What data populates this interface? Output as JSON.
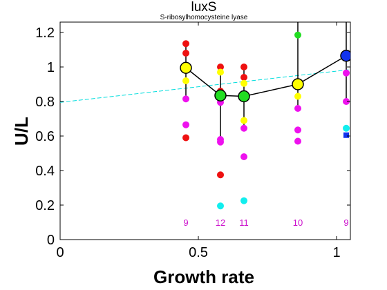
{
  "chart_data": {
    "type": "scatter",
    "title": "luxS",
    "subtitle": "S-ribosylhomocysteine lyase",
    "xlabel": "Growth rate",
    "ylabel": "U/L",
    "xlim": [
      0,
      1.05
    ],
    "ylim": [
      0,
      1.26
    ],
    "xticks": [
      "0",
      "0.5",
      "1"
    ],
    "xtick_values": [
      0,
      0.5,
      1
    ],
    "yticks": [
      "0",
      "0.2",
      "0.4",
      "0.6",
      "0.8",
      "1",
      "1.2"
    ],
    "ytick_values": [
      0,
      0.2,
      0.4,
      0.6,
      0.8,
      1.0,
      1.2
    ],
    "grid": false,
    "colors": {
      "red": "#ee1111",
      "yellow": "#ffff00",
      "magenta": "#ee11ee",
      "cyan": "#11eeee",
      "green": "#22dd22",
      "blue": "#1133ee",
      "trend": "#00dddd",
      "counts": "#cc11cc"
    },
    "scatter_points": [
      {
        "x": 0.455,
        "y": 1.135,
        "color": "red"
      },
      {
        "x": 0.455,
        "y": 1.08,
        "color": "red"
      },
      {
        "x": 0.455,
        "y": 0.92,
        "color": "yellow"
      },
      {
        "x": 0.455,
        "y": 0.815,
        "color": "magenta"
      },
      {
        "x": 0.455,
        "y": 0.665,
        "color": "magenta"
      },
      {
        "x": 0.455,
        "y": 0.59,
        "color": "red"
      },
      {
        "x": 0.455,
        "y": 0.99,
        "color": "yellow"
      },
      {
        "x": 0.58,
        "y": 1.0,
        "color": "red"
      },
      {
        "x": 0.58,
        "y": 0.97,
        "color": "yellow"
      },
      {
        "x": 0.58,
        "y": 0.86,
        "color": "red"
      },
      {
        "x": 0.58,
        "y": 0.83,
        "color": "red"
      },
      {
        "x": 0.58,
        "y": 0.795,
        "color": "magenta"
      },
      {
        "x": 0.58,
        "y": 0.58,
        "color": "magenta"
      },
      {
        "x": 0.58,
        "y": 0.565,
        "color": "magenta"
      },
      {
        "x": 0.58,
        "y": 0.375,
        "color": "red"
      },
      {
        "x": 0.58,
        "y": 0.195,
        "color": "cyan"
      },
      {
        "x": 0.58,
        "y": 0.84,
        "color": "green"
      },
      {
        "x": 0.665,
        "y": 1.0,
        "color": "red"
      },
      {
        "x": 0.665,
        "y": 0.94,
        "color": "red"
      },
      {
        "x": 0.665,
        "y": 0.905,
        "color": "yellow"
      },
      {
        "x": 0.665,
        "y": 0.83,
        "color": "green"
      },
      {
        "x": 0.665,
        "y": 0.69,
        "color": "yellow"
      },
      {
        "x": 0.665,
        "y": 0.645,
        "color": "magenta"
      },
      {
        "x": 0.665,
        "y": 0.48,
        "color": "magenta"
      },
      {
        "x": 0.665,
        "y": 0.225,
        "color": "cyan"
      },
      {
        "x": 0.86,
        "y": 1.185,
        "color": "green"
      },
      {
        "x": 0.86,
        "y": 0.83,
        "color": "yellow"
      },
      {
        "x": 0.86,
        "y": 0.76,
        "color": "magenta"
      },
      {
        "x": 0.86,
        "y": 0.635,
        "color": "magenta"
      },
      {
        "x": 0.86,
        "y": 0.57,
        "color": "magenta"
      },
      {
        "x": 0.86,
        "y": 0.9,
        "color": "yellow"
      },
      {
        "x": 1.035,
        "y": 1.07,
        "color": "blue"
      },
      {
        "x": 1.035,
        "y": 0.965,
        "color": "magenta"
      },
      {
        "x": 1.035,
        "y": 0.8,
        "color": "magenta"
      },
      {
        "x": 1.035,
        "y": 0.645,
        "color": "cyan"
      }
    ],
    "square_points": [
      {
        "x": 1.035,
        "y": 0.605,
        "color": "blue"
      }
    ],
    "mean_series": {
      "x": [
        0.455,
        0.58,
        0.665,
        0.86,
        1.035
      ],
      "y": [
        0.995,
        0.835,
        0.83,
        0.9,
        1.065
      ],
      "fill": [
        "yellow",
        "green",
        "green",
        "yellow",
        "blue"
      ],
      "err_low": [
        0.815,
        0.59,
        0.645,
        0.76,
        0.8
      ],
      "err_high": [
        1.135,
        1.0,
        1.0,
        1.26,
        1.26
      ]
    },
    "trend_line": {
      "x": [
        0,
        1.05
      ],
      "y": [
        0.795,
        0.985
      ]
    },
    "counts": [
      {
        "x": 0.455,
        "label": "9"
      },
      {
        "x": 0.58,
        "label": "12"
      },
      {
        "x": 0.665,
        "label": "11"
      },
      {
        "x": 0.86,
        "label": "10"
      },
      {
        "x": 1.035,
        "label": "9"
      }
    ]
  }
}
